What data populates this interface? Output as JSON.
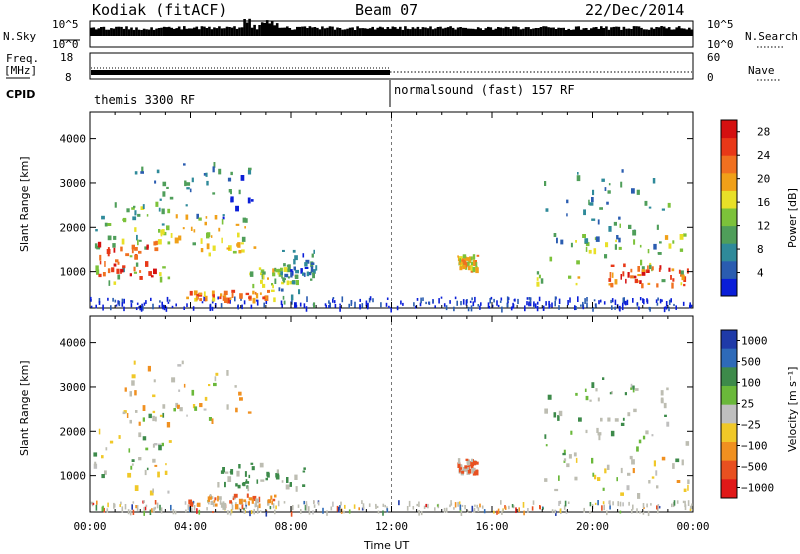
{
  "header": {
    "station": "Kodiak (fitACF)",
    "beam": "Beam 07",
    "date": "22/Dec/2014"
  },
  "nsky_panel": {
    "left_label": "N.Sky",
    "left_ticks": [
      "10^5",
      "10^0"
    ],
    "right_label": "N.Search",
    "right_ticks": [
      "10^5",
      "10^0"
    ]
  },
  "freq_panel": {
    "left_label_1": "Freq.",
    "left_label_2": "[MHz]",
    "left_ticks": [
      "18",
      "8"
    ],
    "right_label": "Nave",
    "right_ticks": [
      "60",
      "0"
    ]
  },
  "cpid_panel": {
    "label": "CPID",
    "mode_1": "themis 3300 RF",
    "mode_2": "normalsound (fast) 157 RF"
  },
  "colors": {
    "power": [
      "#0a1ed8",
      "#2a5cb0",
      "#2f8a9a",
      "#4f9e5a",
      "#7cc23a",
      "#e8e028",
      "#f0a018",
      "#f07020",
      "#e83818",
      "#d41010"
    ],
    "velocity": [
      "#1f3aa8",
      "#2e6ab8",
      "#3d8a4a",
      "#6ab83a",
      "#bfbfbf",
      "#f0c828",
      "#f09020",
      "#e85020",
      "#e01818"
    ],
    "ground_scatter": "#bdbdb2"
  },
  "chart_data": [
    {
      "type": "heatmap",
      "name": "power",
      "ylabel": "Slant Range [km]",
      "yticks": [
        1000,
        2000,
        3000,
        4000
      ],
      "ylim": [
        180,
        4600
      ],
      "xticks": [
        "00:00",
        "04:00",
        "08:00",
        "12:00",
        "16:00",
        "20:00",
        "00:00"
      ],
      "xlim_hours": [
        0,
        24
      ],
      "colorbar_label": "Power [dB]",
      "colorbar_ticks": [
        "4",
        "8",
        "12",
        "16",
        "20",
        "24",
        "28"
      ],
      "colorbar_range": [
        0,
        30
      ],
      "regions": [
        {
          "t0": 0.1,
          "t1": 3.2,
          "r0": 700,
          "r1": 2600,
          "level": 12
        },
        {
          "t0": 0.3,
          "t1": 2.6,
          "r0": 900,
          "r1": 1700,
          "level": 26
        },
        {
          "t0": 1.2,
          "t1": 6.5,
          "r0": 2200,
          "r1": 3500,
          "level": 6
        },
        {
          "t0": 2.8,
          "t1": 6.8,
          "r0": 1400,
          "r1": 2300,
          "level": 16
        },
        {
          "t0": 3.8,
          "t1": 7.4,
          "r0": 400,
          "r1": 600,
          "level": 22
        },
        {
          "t0": 6.3,
          "t1": 8.2,
          "r0": 700,
          "r1": 1200,
          "level": 14
        },
        {
          "t0": 7.5,
          "t1": 9.0,
          "r0": 300,
          "r1": 1500,
          "level": 6
        },
        {
          "t0": 14.6,
          "t1": 15.4,
          "r0": 1100,
          "r1": 1400,
          "level": 18
        },
        {
          "t0": 17.6,
          "t1": 23.8,
          "r0": 700,
          "r1": 1900,
          "level": 14
        },
        {
          "t0": 20.5,
          "t1": 24.0,
          "r0": 700,
          "r1": 1200,
          "level": 24
        },
        {
          "t0": 18.0,
          "t1": 23.0,
          "r0": 1600,
          "r1": 3400,
          "level": 8
        }
      ]
    },
    {
      "type": "heatmap",
      "name": "velocity",
      "ylabel": "Slant Range [km]",
      "yticks": [
        1000,
        2000,
        3000,
        4000
      ],
      "ylim": [
        180,
        4600
      ],
      "xticks": [
        "00:00",
        "04:00",
        "08:00",
        "12:00",
        "16:00",
        "20:00",
        "00:00"
      ],
      "xlim_hours": [
        0,
        24
      ],
      "xlabel": "Time UT",
      "colorbar_label": "Velocity [m s⁻¹]",
      "colorbar_ticks": [
        "1000",
        "500",
        "100",
        "25",
        "−25",
        "−100",
        "−500",
        "−1000"
      ],
      "regions": [
        {
          "t0": 0.1,
          "t1": 3.2,
          "r0": 600,
          "r1": 2500,
          "level": 25
        },
        {
          "t0": 1.0,
          "t1": 6.8,
          "r0": 2200,
          "r1": 3600,
          "level": -100
        },
        {
          "t0": 3.8,
          "t1": 7.4,
          "r0": 350,
          "r1": 600,
          "level": -500
        },
        {
          "t0": 5.0,
          "t1": 8.6,
          "r0": 700,
          "r1": 1300,
          "level": 300
        },
        {
          "t0": 14.6,
          "t1": 15.4,
          "r0": 1100,
          "r1": 1400,
          "level": -800
        },
        {
          "t0": 18.0,
          "t1": 24.0,
          "r0": 600,
          "r1": 1900,
          "level": 0
        },
        {
          "t0": 18.0,
          "t1": 23.0,
          "r0": 1900,
          "r1": 3300,
          "level": 150
        }
      ]
    }
  ]
}
